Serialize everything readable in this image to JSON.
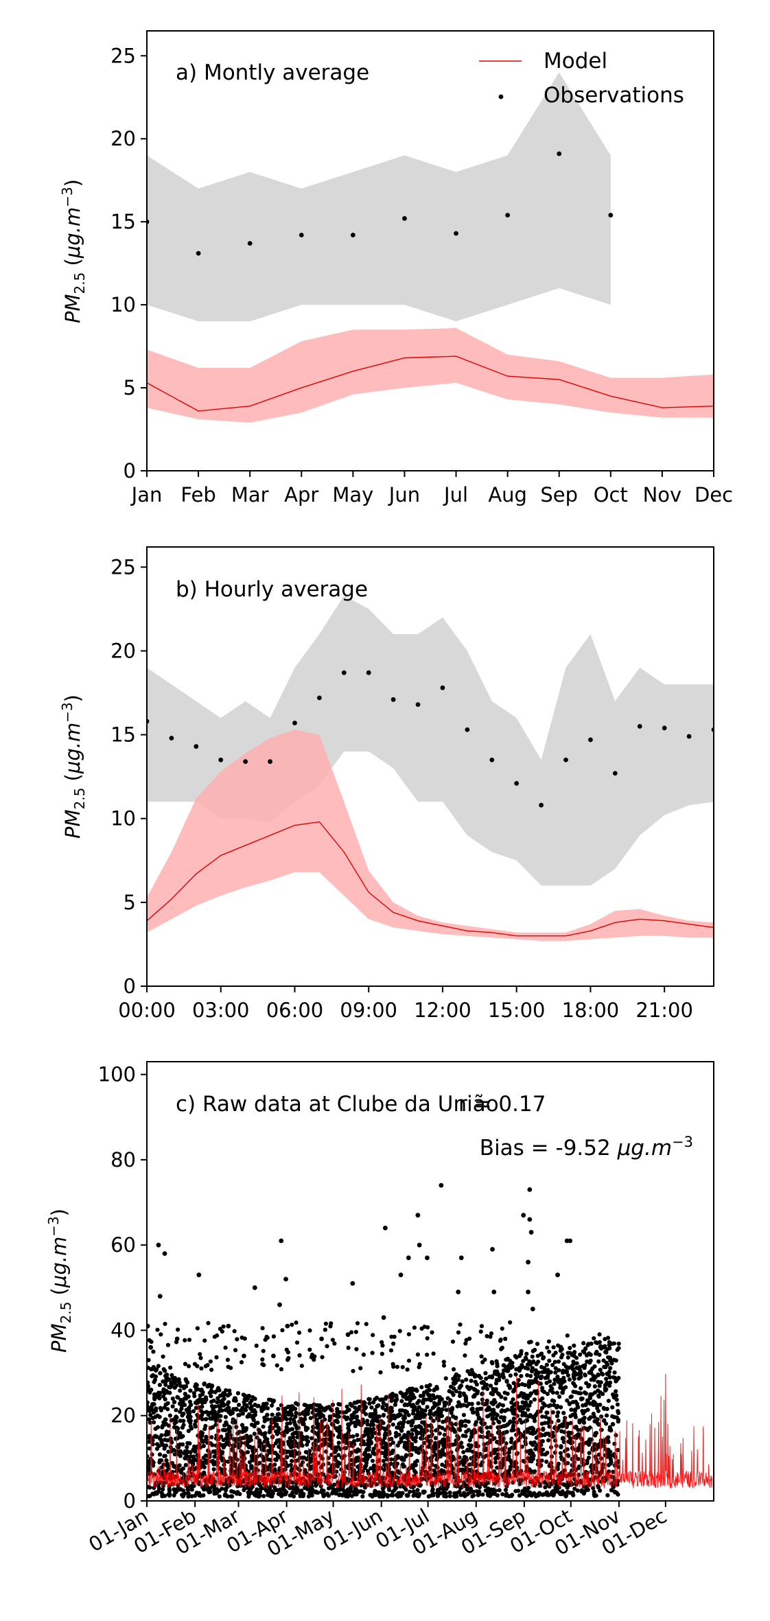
{
  "chart_data": [
    {
      "type": "line",
      "annotation": "a) Montly average",
      "ylabel": "PM2.5 (μg.m−3)",
      "ylim": [
        0,
        26.5
      ],
      "yticks": [
        0,
        5,
        10,
        15,
        20,
        25
      ],
      "xlim": [
        0,
        11
      ],
      "x": [
        0,
        1,
        2,
        3,
        4,
        5,
        6,
        7,
        8,
        9,
        10,
        11
      ],
      "xticklabels": [
        "Jan",
        "Feb",
        "Mar",
        "Apr",
        "May",
        "Jun",
        "Jul",
        "Aug",
        "Sep",
        "Oct",
        "Nov",
        "Dec"
      ],
      "legend": {
        "placement": "top-right",
        "entries": [
          "Model",
          "Observations"
        ]
      },
      "series": [
        {
          "name": "Model",
          "kind": "line",
          "color": "#e00000",
          "x": [
            0,
            1,
            2,
            3,
            4,
            5,
            6,
            7,
            8,
            9,
            10,
            11
          ],
          "values": [
            5.3,
            3.6,
            3.9,
            5.0,
            6.0,
            6.8,
            6.9,
            5.7,
            5.5,
            4.5,
            3.8,
            3.9
          ]
        },
        {
          "name": "Model range",
          "kind": "band",
          "color": "#ffb0b0",
          "x": [
            0,
            1,
            2,
            3,
            4,
            5,
            6,
            7,
            8,
            9,
            10,
            11
          ],
          "lower": [
            3.8,
            3.1,
            2.9,
            3.5,
            4.6,
            5.0,
            5.3,
            4.3,
            4.0,
            3.5,
            3.2,
            3.2
          ],
          "upper": [
            7.3,
            6.2,
            6.2,
            7.8,
            8.5,
            8.5,
            8.6,
            7.0,
            6.6,
            5.6,
            5.6,
            5.8
          ]
        },
        {
          "name": "Observations",
          "kind": "points",
          "color": "#000000",
          "x": [
            0,
            1,
            2,
            3,
            4,
            5,
            6,
            7,
            8,
            9
          ],
          "values": [
            15.0,
            13.1,
            13.7,
            14.2,
            14.2,
            15.2,
            14.3,
            15.4,
            19.1,
            15.4
          ]
        },
        {
          "name": "Observation range",
          "kind": "band",
          "color": "#d8d8d8",
          "x": [
            0,
            1,
            2,
            3,
            4,
            5,
            6,
            7,
            8,
            9
          ],
          "lower": [
            10,
            9,
            9,
            10,
            10,
            10,
            9,
            10,
            11,
            10
          ],
          "upper": [
            19,
            17,
            18,
            17,
            18,
            19,
            18,
            19,
            24,
            19
          ]
        }
      ]
    },
    {
      "type": "line",
      "annotation": "b) Hourly average",
      "ylabel": "PM2.5 (μg.m−3)",
      "ylim": [
        0,
        26.2
      ],
      "yticks": [
        0,
        5,
        10,
        15,
        20,
        25
      ],
      "xlim": [
        0,
        23
      ],
      "xticks": [
        0,
        3,
        6,
        9,
        12,
        15,
        18,
        21
      ],
      "xticklabels": [
        "00:00",
        "03:00",
        "06:00",
        "09:00",
        "12:00",
        "15:00",
        "18:00",
        "21:00"
      ],
      "series": [
        {
          "name": "Model",
          "kind": "line",
          "color": "#e00000",
          "x": [
            0,
            1,
            2,
            3,
            4,
            5,
            6,
            7,
            8,
            9,
            10,
            11,
            12,
            13,
            14,
            15,
            16,
            17,
            18,
            19,
            20,
            21,
            22,
            23
          ],
          "values": [
            3.9,
            5.2,
            6.7,
            7.8,
            8.4,
            9.0,
            9.6,
            9.8,
            8.0,
            5.6,
            4.4,
            3.9,
            3.6,
            3.3,
            3.2,
            3.0,
            3.0,
            3.0,
            3.3,
            3.8,
            4.0,
            3.9,
            3.7,
            3.5
          ]
        },
        {
          "name": "Model range",
          "kind": "band",
          "color": "#ffb0b0",
          "x": [
            0,
            1,
            2,
            3,
            4,
            5,
            6,
            7,
            8,
            9,
            10,
            11,
            12,
            13,
            14,
            15,
            16,
            17,
            18,
            19,
            20,
            21,
            22,
            23
          ],
          "lower": [
            3.2,
            4.0,
            4.8,
            5.4,
            5.9,
            6.3,
            6.8,
            6.8,
            5.4,
            4.0,
            3.5,
            3.3,
            3.1,
            3.0,
            2.9,
            2.8,
            2.7,
            2.7,
            2.8,
            2.9,
            3.0,
            3.0,
            2.9,
            2.9
          ],
          "upper": [
            5.3,
            8.0,
            11.2,
            12.8,
            13.9,
            14.8,
            15.3,
            15.0,
            11.0,
            6.9,
            5.0,
            4.2,
            3.8,
            3.6,
            3.4,
            3.2,
            3.2,
            3.2,
            3.7,
            4.5,
            4.6,
            4.2,
            3.9,
            3.8
          ]
        },
        {
          "name": "Observations",
          "kind": "points",
          "color": "#000000",
          "x": [
            0,
            1,
            2,
            3,
            4,
            5,
            6,
            7,
            8,
            9,
            10,
            11,
            12,
            13,
            14,
            15,
            16,
            17,
            18,
            19,
            20,
            21,
            22,
            23
          ],
          "values": [
            15.8,
            14.8,
            14.3,
            13.5,
            13.4,
            13.4,
            15.7,
            17.2,
            18.7,
            18.7,
            17.1,
            16.8,
            17.8,
            15.3,
            13.5,
            12.1,
            10.8,
            13.5,
            14.7,
            12.7,
            15.5,
            15.4,
            14.9,
            15.3
          ]
        },
        {
          "name": "Observation range",
          "kind": "band",
          "color": "#d8d8d8",
          "x": [
            0,
            1,
            2,
            3,
            4,
            5,
            6,
            7,
            8,
            9,
            10,
            11,
            12,
            13,
            14,
            15,
            16,
            17,
            18,
            19,
            20,
            21,
            22,
            23
          ],
          "lower": [
            11,
            11,
            11,
            10,
            10,
            9.8,
            11,
            12,
            14,
            14,
            13,
            11,
            11,
            9,
            8,
            7.5,
            6,
            6,
            6,
            7,
            9,
            10.2,
            10.8,
            11
          ],
          "upper": [
            19,
            18,
            17,
            16,
            17,
            16,
            19,
            21,
            23.3,
            22.5,
            21,
            21,
            22,
            20,
            17,
            16,
            13.5,
            19,
            21,
            17,
            19,
            18,
            18,
            18
          ]
        }
      ]
    },
    {
      "type": "scatter",
      "annotation": "c) Raw data at Clube da União",
      "r_label": "r = 0.17",
      "bias_label": "Bias = -9.52 μg.m−3",
      "ylabel": "PM2.5 (μg.m−3)",
      "ylim": [
        0,
        103
      ],
      "yticks": [
        0,
        20,
        40,
        60,
        80,
        100
      ],
      "xlim": [
        "2021-01-01",
        "2021-12-31"
      ],
      "xticklabels": [
        "01-Jan",
        "01-Feb",
        "01-Mar",
        "01-Apr",
        "01-May",
        "01-Jun",
        "01-Jul",
        "01-Aug",
        "01-Sep",
        "01-Oct",
        "01-Nov",
        "01-Dec"
      ],
      "xticks": [
        "2021-01-01",
        "2021-02-01",
        "2021-03-01",
        "2021-04-01",
        "2021-05-01",
        "2021-06-01",
        "2021-07-01",
        "2021-08-01",
        "2021-09-01",
        "2021-10-01",
        "2021-11-01",
        "2021-12-01"
      ],
      "observation_end": "2021-10-31",
      "series": [
        {
          "name": "Observations",
          "kind": "points",
          "color": "#000000",
          "typical_range": [
            1,
            30
          ],
          "peaks": [
            {
              "date": "2021-01-01",
              "value": 41
            },
            {
              "date": "2021-01-03",
              "value": 36
            },
            {
              "date": "2021-01-08",
              "value": 60
            },
            {
              "date": "2021-01-09",
              "value": 48
            },
            {
              "date": "2021-01-12",
              "value": 58
            },
            {
              "date": "2021-01-20",
              "value": 38
            },
            {
              "date": "2021-02-03",
              "value": 53
            },
            {
              "date": "2021-02-22",
              "value": 41
            },
            {
              "date": "2021-03-04",
              "value": 34
            },
            {
              "date": "2021-03-11",
              "value": 50
            },
            {
              "date": "2021-03-23",
              "value": 34
            },
            {
              "date": "2021-03-28",
              "value": 61
            },
            {
              "date": "2021-03-27",
              "value": 46
            },
            {
              "date": "2021-03-31",
              "value": 52
            },
            {
              "date": "2021-04-01",
              "value": 41
            },
            {
              "date": "2021-04-23",
              "value": 38
            },
            {
              "date": "2021-05-13",
              "value": 51
            },
            {
              "date": "2021-05-10",
              "value": 39
            },
            {
              "date": "2021-06-03",
              "value": 64
            },
            {
              "date": "2021-06-02",
              "value": 43
            },
            {
              "date": "2021-06-13",
              "value": 53
            },
            {
              "date": "2021-06-18",
              "value": 57
            },
            {
              "date": "2021-06-24",
              "value": 67
            },
            {
              "date": "2021-06-25",
              "value": 60
            },
            {
              "date": "2021-06-30",
              "value": 57
            },
            {
              "date": "2021-07-09",
              "value": 74
            },
            {
              "date": "2021-07-22",
              "value": 57
            },
            {
              "date": "2021-07-20",
              "value": 49
            },
            {
              "date": "2021-08-11",
              "value": 59
            },
            {
              "date": "2021-08-12",
              "value": 49
            },
            {
              "date": "2021-08-31",
              "value": 67
            },
            {
              "date": "2021-09-04",
              "value": 73
            },
            {
              "date": "2021-09-04",
              "value": 66
            },
            {
              "date": "2021-09-05",
              "value": 63
            },
            {
              "date": "2021-09-03",
              "value": 56
            },
            {
              "date": "2021-09-03",
              "value": 49
            },
            {
              "date": "2021-09-06",
              "value": 45
            },
            {
              "date": "2021-09-28",
              "value": 61
            },
            {
              "date": "2021-09-30",
              "value": 61
            },
            {
              "date": "2021-09-22",
              "value": 53
            }
          ]
        },
        {
          "name": "Model",
          "kind": "line",
          "color": "#ff0000",
          "typical_range": [
            0,
            20
          ]
        }
      ]
    }
  ]
}
